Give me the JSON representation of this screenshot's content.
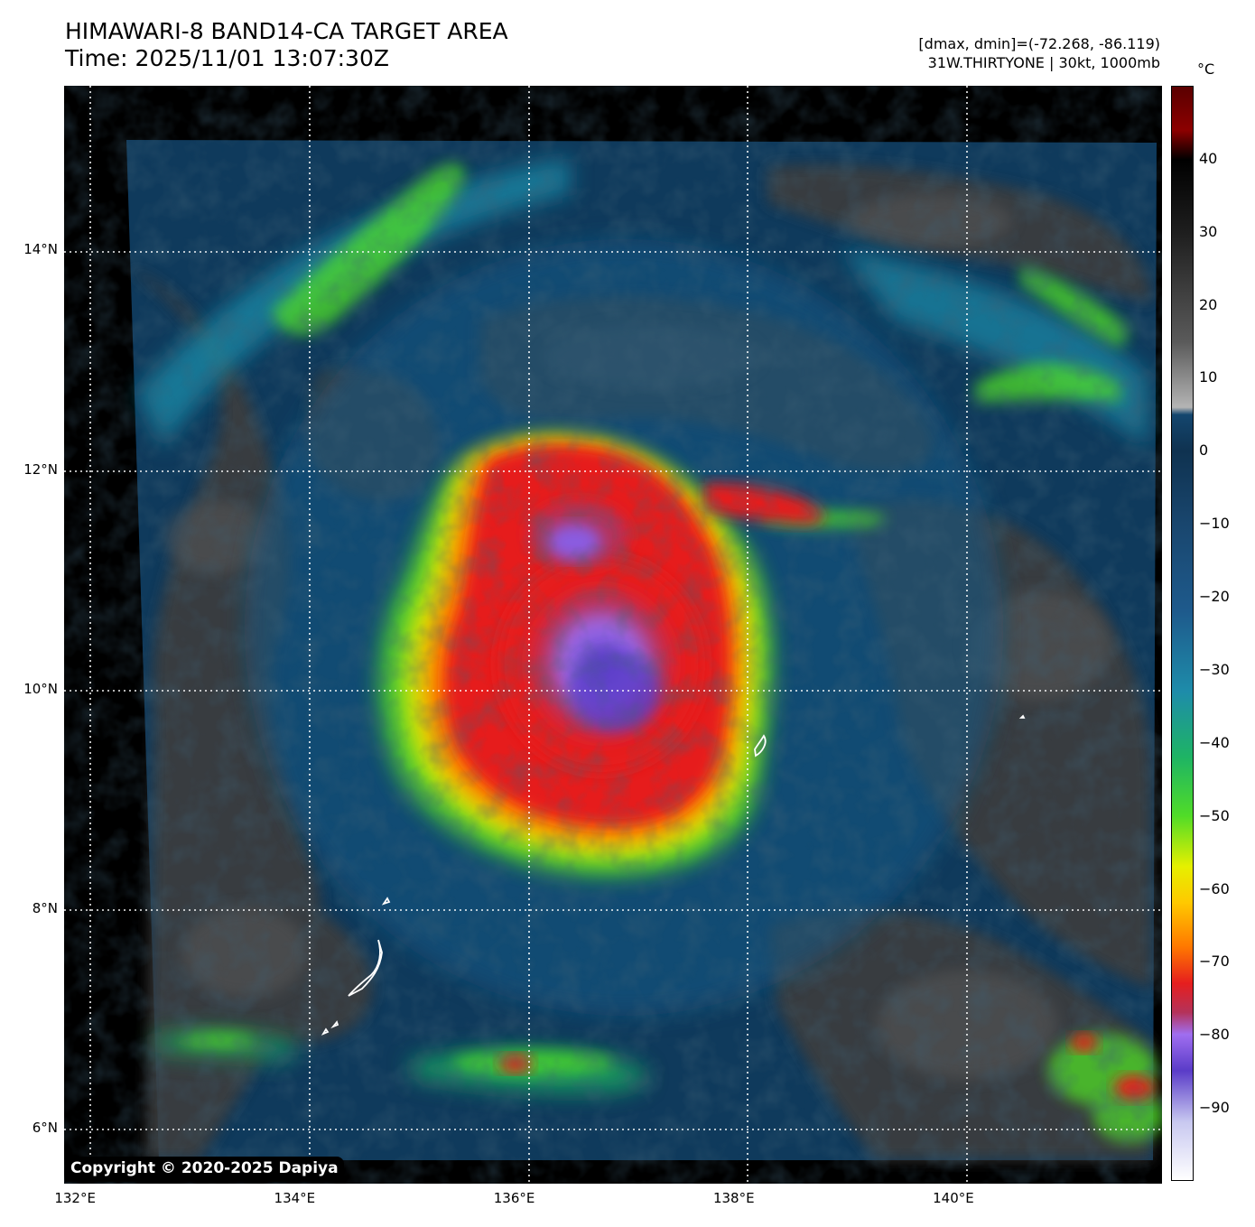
{
  "title": {
    "line1": "HIMAWARI-8 BAND14-CA TARGET AREA",
    "line2": "Time: 2025/11/01 13:07:30Z"
  },
  "meta": {
    "line1": "[dmax, dmin]=(-72.268, -86.119)",
    "line2": "31W.THIRTYONE | 30kt, 1000mb"
  },
  "map_extent": {
    "lon_min": 131.9,
    "lon_max": 141.9,
    "lat_min": 5.5,
    "lat_max": 15.5
  },
  "lon_ticks": [
    {
      "value": 132,
      "label": "132°E"
    },
    {
      "value": 134,
      "label": "134°E"
    },
    {
      "value": 136,
      "label": "136°E"
    },
    {
      "value": 138,
      "label": "138°E"
    },
    {
      "value": 140,
      "label": "140°E"
    }
  ],
  "lat_ticks": [
    {
      "value": 14,
      "label": "14°N"
    },
    {
      "value": 12,
      "label": "12°N"
    },
    {
      "value": 10,
      "label": "10°N"
    },
    {
      "value": 8,
      "label": "8°N"
    },
    {
      "value": 6,
      "label": "6°N"
    }
  ],
  "colorbar": {
    "unit": "°C",
    "min": -100,
    "max": 50,
    "ticks": [
      40,
      30,
      20,
      10,
      0,
      -10,
      -20,
      -30,
      -40,
      -50,
      -60,
      -70,
      -80,
      -90
    ],
    "tick_labels": [
      "40",
      "30",
      "20",
      "10",
      "0",
      "−10",
      "−20",
      "−30",
      "−40",
      "−50",
      "−60",
      "−70",
      "−80",
      "−90"
    ],
    "stops": [
      {
        "t": -100,
        "color": "#ffffff"
      },
      {
        "t": -92,
        "color": "#c8c8f0"
      },
      {
        "t": -85,
        "color": "#5a3cc8"
      },
      {
        "t": -80,
        "color": "#a06ef0"
      },
      {
        "t": -77,
        "color": "#b4325a"
      },
      {
        "t": -73,
        "color": "#e61e1e"
      },
      {
        "t": -68,
        "color": "#ff7800"
      },
      {
        "t": -62,
        "color": "#ffc800"
      },
      {
        "t": -57,
        "color": "#e6f000"
      },
      {
        "t": -50,
        "color": "#50dc28"
      },
      {
        "t": -42,
        "color": "#1eb464"
      },
      {
        "t": -33,
        "color": "#1e8caa"
      },
      {
        "t": -22,
        "color": "#1e5a8c"
      },
      {
        "t": -10,
        "color": "#19466e"
      },
      {
        "t": 0,
        "color": "#0f3250"
      },
      {
        "t": 5,
        "color": "#14466e"
      },
      {
        "t": 6,
        "color": "#b4b4b4"
      },
      {
        "t": 15,
        "color": "#5a5a5a"
      },
      {
        "t": 30,
        "color": "#1e1e1e"
      },
      {
        "t": 40,
        "color": "#000000"
      },
      {
        "t": 44,
        "color": "#8c0000"
      },
      {
        "t": 50,
        "color": "#5a0000"
      }
    ]
  },
  "copyright": "Copyright © 2020-2025 Dapiya"
}
